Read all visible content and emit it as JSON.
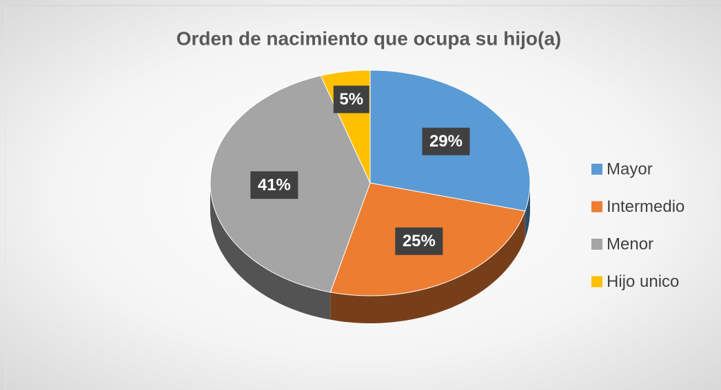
{
  "chart_data": {
    "type": "pie",
    "title": "Orden de nacimiento que ocupa su hijo(a)",
    "categories": [
      "Mayor",
      "Intermedio",
      "Menor",
      "Hijo unico"
    ],
    "values": [
      29,
      25,
      41,
      5
    ],
    "value_labels": [
      "29%",
      "25%",
      "41%",
      "5%"
    ],
    "colors": [
      "#5b9bd5",
      "#ed7d31",
      "#a5a5a5",
      "#ffc000"
    ],
    "legend": "right"
  }
}
